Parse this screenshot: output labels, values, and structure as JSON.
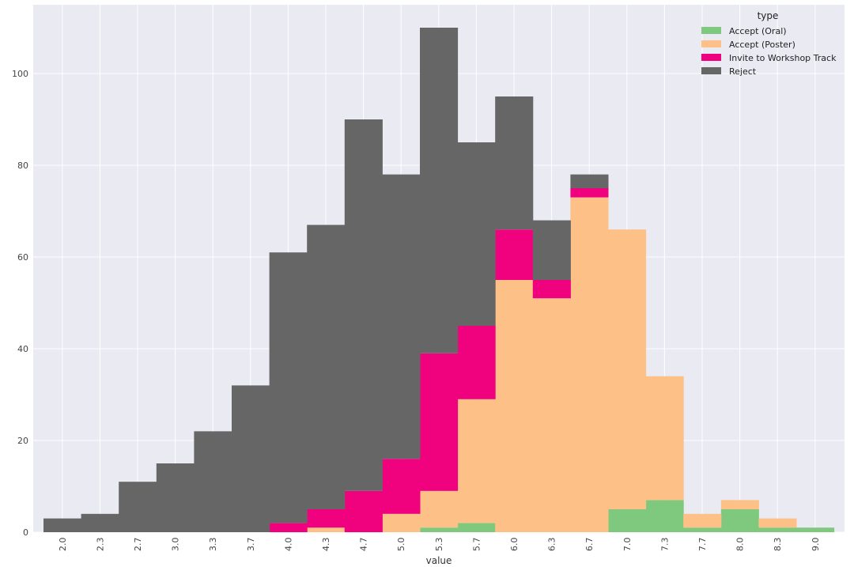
{
  "chart_data": {
    "type": "bar",
    "stacked": true,
    "xlabel": "value",
    "ylabel": "",
    "ylim": [
      0,
      115
    ],
    "yticks": [
      0,
      20,
      40,
      60,
      80,
      100
    ],
    "grid": true,
    "legend": {
      "title": "type",
      "position": "top-right"
    },
    "categories": [
      "2.0",
      "2.3",
      "2.7",
      "3.0",
      "3.3",
      "3.7",
      "4.0",
      "4.3",
      "4.7",
      "5.0",
      "5.3",
      "5.7",
      "6.0",
      "6.3",
      "6.7",
      "7.0",
      "7.3",
      "7.7",
      "8.0",
      "8.3",
      "9.0"
    ],
    "series": [
      {
        "name": "Accept (Oral)",
        "color": "#7fc97f",
        "values": [
          0,
          0,
          0,
          0,
          0,
          0,
          0,
          0,
          0,
          0,
          1,
          2,
          0,
          0,
          0,
          5,
          7,
          1,
          5,
          1,
          1
        ]
      },
      {
        "name": "Accept (Poster)",
        "color": "#fdc086",
        "values": [
          0,
          0,
          0,
          0,
          0,
          0,
          0,
          1,
          0,
          4,
          8,
          27,
          55,
          51,
          73,
          61,
          27,
          3,
          2,
          2,
          0
        ]
      },
      {
        "name": "Invite to Workshop Track",
        "color": "#f0027f",
        "values": [
          0,
          0,
          0,
          0,
          0,
          0,
          2,
          4,
          9,
          12,
          30,
          16,
          11,
          4,
          2,
          0,
          0,
          0,
          0,
          0,
          0
        ]
      },
      {
        "name": "Reject",
        "color": "#666666",
        "values": [
          3,
          4,
          11,
          15,
          22,
          32,
          59,
          62,
          81,
          62,
          71,
          40,
          29,
          13,
          3,
          0,
          0,
          0,
          0,
          0,
          0
        ]
      }
    ]
  }
}
